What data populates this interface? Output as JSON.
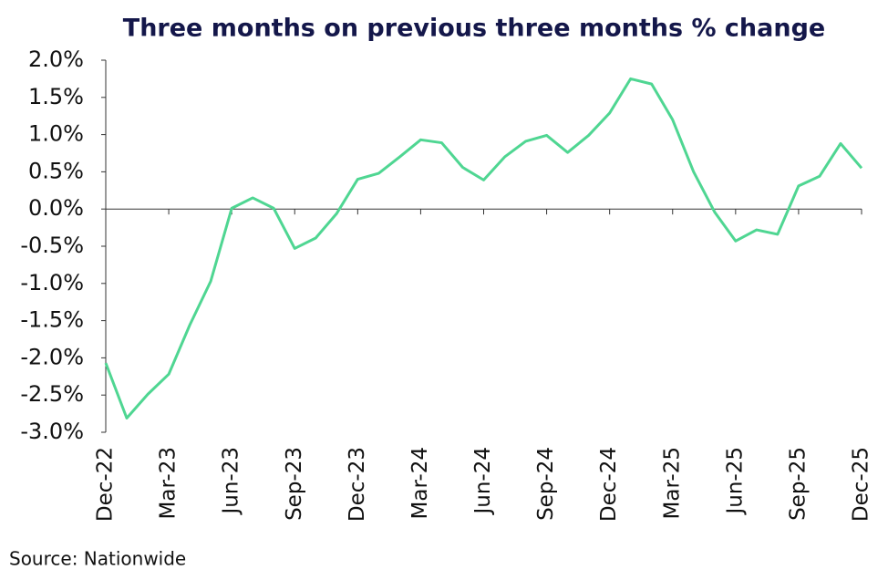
{
  "chart_data": {
    "type": "line",
    "title": "Three months on previous three months % change",
    "source": "Source: Nationwide",
    "categories": [
      "Dec-22",
      null,
      null,
      "Mar-23",
      null,
      null,
      "Jun-23",
      null,
      null,
      "Sep-23",
      null,
      null,
      "Dec-23",
      null,
      null,
      "Mar-24",
      null,
      null,
      "Jun-24",
      null,
      null,
      "Sep-24",
      null,
      null,
      "Dec-24",
      null,
      null,
      "Mar-25",
      null,
      null,
      "Jun-25",
      null,
      null,
      "Sep-25",
      null,
      null,
      "Dec-25"
    ],
    "series": [
      {
        "color": "#4fd692",
        "values": [
          -2.07,
          -2.81,
          -2.49,
          -2.22,
          -1.56,
          -0.97,
          0.01,
          0.15,
          0.01,
          -0.53,
          -0.39,
          -0.06,
          0.4,
          0.48,
          0.7,
          0.93,
          0.89,
          0.56,
          0.39,
          0.7,
          0.91,
          0.99,
          0.76,
          0.99,
          1.29,
          1.75,
          1.68,
          1.2,
          0.5,
          -0.04,
          -0.43,
          -0.28,
          -0.34,
          0.31,
          0.44,
          0.88,
          0.55
        ]
      }
    ],
    "ylim": [
      -3.0,
      2.0
    ],
    "yticks": [
      {
        "value": 2.0,
        "label": "2.0%"
      },
      {
        "value": 1.5,
        "label": "1.5%"
      },
      {
        "value": 1.0,
        "label": "1.0%"
      },
      {
        "value": 0.5,
        "label": "0.5%"
      },
      {
        "value": 0.0,
        "label": "0.0%"
      },
      {
        "value": -0.5,
        "label": "-0.5%"
      },
      {
        "value": -1.0,
        "label": "-1.0%"
      },
      {
        "value": -1.5,
        "label": "-1.5%"
      },
      {
        "value": -2.0,
        "label": "-2.0%"
      },
      {
        "value": -2.5,
        "label": "-2.5%"
      },
      {
        "value": -3.0,
        "label": "-3.0%"
      }
    ],
    "grid": false
  }
}
